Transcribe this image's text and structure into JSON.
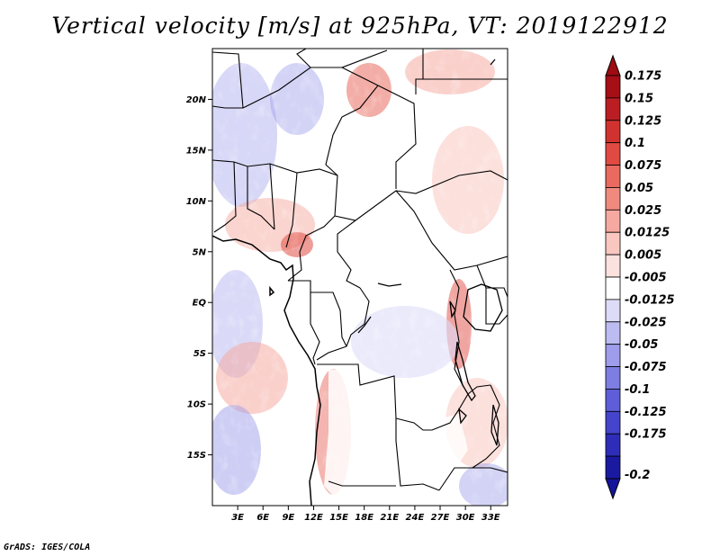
{
  "title": "Vertical velocity [m/s] at 925hPa, VT: 2019122912",
  "footer": "GrADS: IGES/COLA",
  "map": {
    "lon_range": [
      0,
      35
    ],
    "lat_range": [
      -20,
      25
    ],
    "lat_ticks": [
      {
        "value": 20,
        "label": "20N"
      },
      {
        "value": 15,
        "label": "15N"
      },
      {
        "value": 10,
        "label": "10N"
      },
      {
        "value": 5,
        "label": "5N"
      },
      {
        "value": 0,
        "label": "EQ"
      },
      {
        "value": -5,
        "label": "5S"
      },
      {
        "value": -10,
        "label": "10S"
      },
      {
        "value": -15,
        "label": "15S"
      }
    ],
    "lon_ticks": [
      {
        "value": 3,
        "label": "3E"
      },
      {
        "value": 6,
        "label": "6E"
      },
      {
        "value": 9,
        "label": "9E"
      },
      {
        "value": 12,
        "label": "12E"
      },
      {
        "value": 15,
        "label": "15E"
      },
      {
        "value": 18,
        "label": "18E"
      },
      {
        "value": 21,
        "label": "21E"
      },
      {
        "value": 24,
        "label": "24E"
      },
      {
        "value": 27,
        "label": "27E"
      },
      {
        "value": 30,
        "label": "30E"
      },
      {
        "value": 33,
        "label": "33E"
      }
    ]
  },
  "colorbar": {
    "levels": [
      {
        "label": "0.175",
        "color": "#a50f15"
      },
      {
        "label": "0.15",
        "color": "#bb1e22"
      },
      {
        "label": "0.125",
        "color": "#d0332f"
      },
      {
        "label": "0.1",
        "color": "#e04a42"
      },
      {
        "label": "0.075",
        "color": "#ea6a5f"
      },
      {
        "label": "0.05",
        "color": "#f08a7f"
      },
      {
        "label": "0.025",
        "color": "#f6a9a0"
      },
      {
        "label": "0.0125",
        "color": "#f9c6c0"
      },
      {
        "label": "0.005",
        "color": "#fce2de"
      },
      {
        "label": "-0.005",
        "color": "#ffffff"
      },
      {
        "label": "-0.0125",
        "color": "#dcdcf8"
      },
      {
        "label": "-0.025",
        "color": "#bcbcf2"
      },
      {
        "label": "-0.05",
        "color": "#9d9deb"
      },
      {
        "label": "-0.075",
        "color": "#7d7de2"
      },
      {
        "label": "-0.1",
        "color": "#5e5ed8"
      },
      {
        "label": "-0.125",
        "color": "#4444cc"
      },
      {
        "label": "-0.175",
        "color": "#2d2db8"
      },
      {
        "label": "-0.2",
        "color": "#1a1aa0"
      }
    ],
    "top_color": "#9e0b12",
    "bottom_color": "#14149a"
  }
}
